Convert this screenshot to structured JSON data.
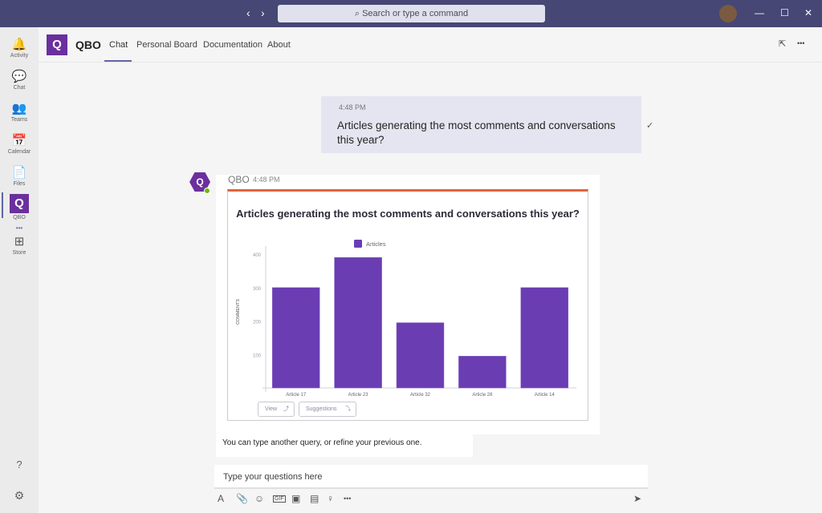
{
  "titlebar": {
    "search_placeholder": "Search or type a command",
    "back": "‹",
    "forward": "›",
    "min": "—",
    "max": "☐",
    "close": "✕"
  },
  "sidebar": {
    "items": [
      {
        "label": "Activity",
        "icon": "🔔"
      },
      {
        "label": "Chat",
        "icon": "💬"
      },
      {
        "label": "Teams",
        "icon": "👥"
      },
      {
        "label": "Calendar",
        "icon": "📅"
      },
      {
        "label": "Files",
        "icon": "📄"
      },
      {
        "label": "QBO",
        "icon": "Q"
      },
      {
        "label": "Store",
        "icon": "⊞"
      }
    ],
    "more": "•••",
    "help": "?",
    "settings": "⚙"
  },
  "header": {
    "app_name": "QBO",
    "logo": "Q",
    "tabs": [
      "Chat",
      "Personal Board",
      "Documentation",
      "About"
    ],
    "popout": "⇱",
    "more": "•••"
  },
  "user_message": {
    "time": "4:48 PM",
    "text": "Articles generating the most comments and conversations this year?",
    "status": "✓"
  },
  "bot_message": {
    "sender": "QBO",
    "time": "4:48 PM",
    "followup": "You can type another query, or refine your previous one.",
    "buttons": {
      "view": "View",
      "view_icon": "⤴",
      "suggestions": "Suggestions",
      "suggestions_icon": "⤵"
    }
  },
  "compose": {
    "placeholder": "Type your questions here",
    "tools": [
      "A",
      "📎",
      "☺",
      "GIF",
      "▣",
      "▤",
      "♀",
      "•••"
    ],
    "send": "➤"
  },
  "chart_data": {
    "type": "bar",
    "title": "Articles generating the most comments and conversations this year?",
    "categories": [
      "Article 17",
      "Article 23",
      "Article 32",
      "Article 28",
      "Article 14"
    ],
    "series": [
      {
        "name": "Articles",
        "values": [
          300,
          390,
          195,
          95,
          300
        ]
      }
    ],
    "xlabel": "",
    "ylabel": "COMMENTS",
    "ylim": [
      0,
      400
    ],
    "yticks": [
      "100",
      "200",
      "300",
      "400"
    ],
    "legend": "top-center",
    "color": "#6a3db3"
  }
}
